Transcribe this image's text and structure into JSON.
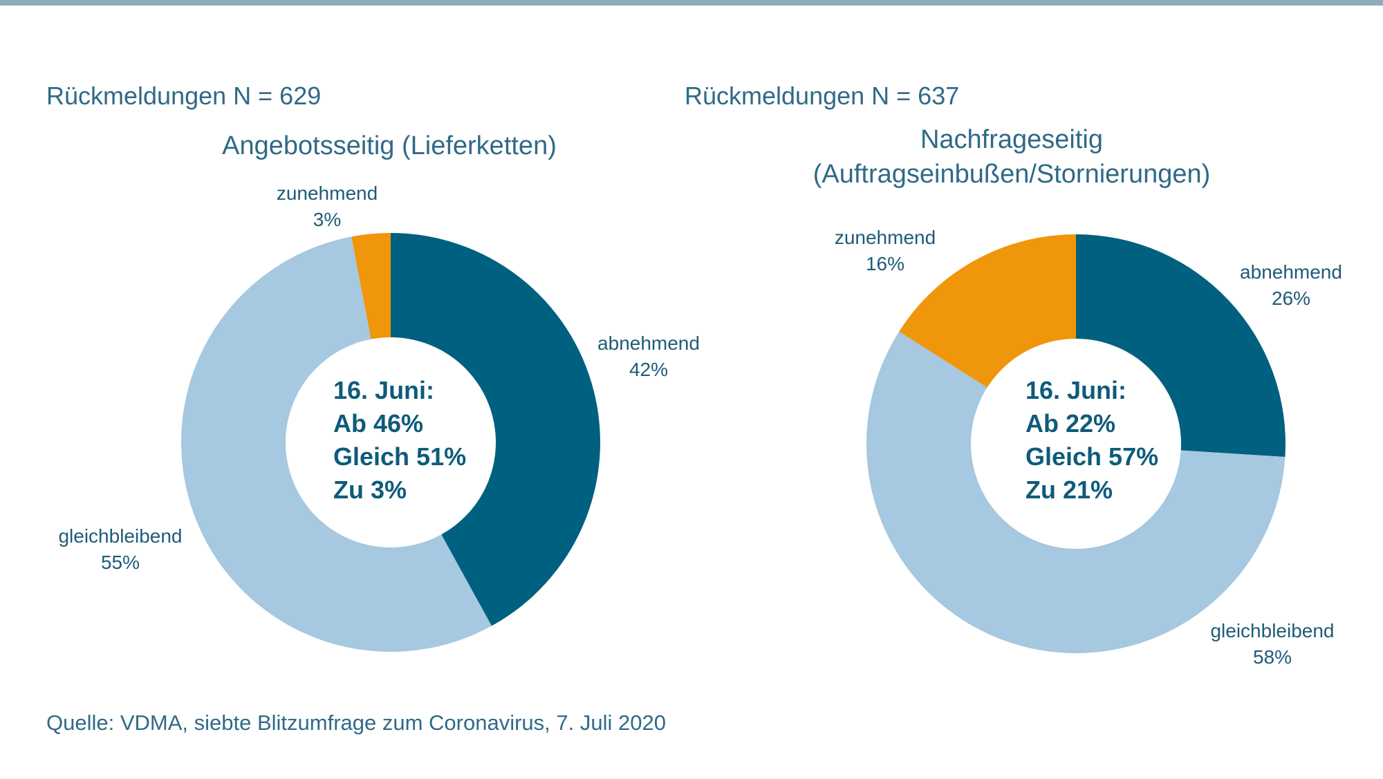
{
  "colors": {
    "abnehmend": "#006080",
    "gleichbleibend": "#a6c8e0",
    "zunehmend": "#f0960a",
    "text": "#2f6a86"
  },
  "chart_data": [
    {
      "type": "pie",
      "variant": "donut",
      "n_label": "Rückmeldungen N = 629",
      "title_lines": [
        "Angebotsseitig  (Lieferketten)"
      ],
      "slices": [
        {
          "name": "abnehmend",
          "value": 42,
          "value_label": "42%"
        },
        {
          "name": "gleichbleibend",
          "value": 55,
          "value_label": "55%"
        },
        {
          "name": "zunehmend",
          "value": 3,
          "value_label": "3%"
        }
      ],
      "center_lines": [
        "16. Juni:",
        "Ab 46%",
        "Gleich 51%",
        "Zu 3%"
      ]
    },
    {
      "type": "pie",
      "variant": "donut",
      "n_label": "Rückmeldungen N = 637",
      "title_lines": [
        "Nachfrageseitig",
        "(Auftragseinbußen/Stornierungen)"
      ],
      "slices": [
        {
          "name": "abnehmend",
          "value": 26,
          "value_label": "26%"
        },
        {
          "name": "gleichbleibend",
          "value": 58,
          "value_label": "58%"
        },
        {
          "name": "zunehmend",
          "value": 16,
          "value_label": "16%"
        }
      ],
      "center_lines": [
        "16. Juni:",
        "Ab 22%",
        "Gleich 57%",
        "Zu 21%"
      ]
    }
  ],
  "source": "Quelle: VDMA, siebte Blitzumfrage zum Coronavirus, 7. Juli 2020"
}
